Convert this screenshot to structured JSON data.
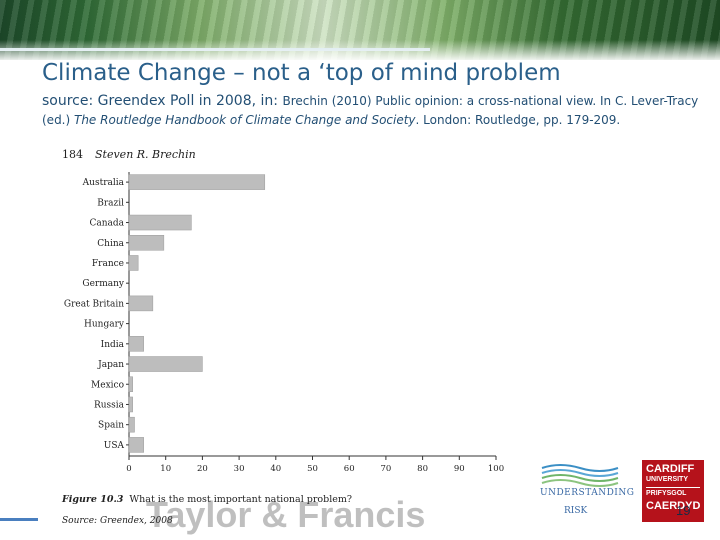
{
  "slide": {
    "title": "Climate Change – not a ‘top of mind problem",
    "source_head": "source: Greendex Poll  in 2008, in: ",
    "source_text": "Brechin (2010) Public opinion: a cross-national view. In C. Lever-Tracy (ed.) ",
    "source_book": "The Routledge Handbook of Climate Change and Society",
    "source_tail": ". London: Routledge, pp. 179-209.",
    "slide_number": "19"
  },
  "book_page": {
    "page_number": "184",
    "author": "Steven R. Brechin",
    "figure_label": "Figure 10.3",
    "figure_caption": "What is the most important national problem?",
    "source_note": "Source: Greendex, 2008",
    "watermark": "Taylor & Francis"
  },
  "logos": {
    "understanding_risk_top": "UNDERSTANDING",
    "understanding_risk_bottom": "RISK",
    "cardiff_line1": "CARDIFF",
    "cardiff_line2": "UNIVERSITY",
    "cardiff_line3": "PRIFYSGOL",
    "cardiff_line4": "CAERDYD"
  },
  "colors": {
    "title": "#2a5f8a",
    "bar_fill": "#bdbdbd",
    "cardiff_red": "#b5121b",
    "understanding_risk_blue": "#3b6aa5"
  },
  "chart_data": {
    "type": "bar",
    "orientation": "horizontal",
    "categories": [
      "Australia",
      "Brazil",
      "Canada",
      "China",
      "France",
      "Germany",
      "Great Britain",
      "Hungary",
      "India",
      "Japan",
      "Mexico",
      "Russia",
      "Spain",
      "USA"
    ],
    "values": [
      37,
      0,
      17,
      9.5,
      2.5,
      0,
      6.5,
      0,
      4,
      20,
      1,
      1,
      1.5,
      4
    ],
    "xlim": [
      0,
      100
    ],
    "xticks": [
      0,
      10,
      20,
      30,
      40,
      50,
      60,
      70,
      80,
      90,
      100
    ],
    "grid": false,
    "title": "",
    "xlabel": "",
    "ylabel": ""
  }
}
